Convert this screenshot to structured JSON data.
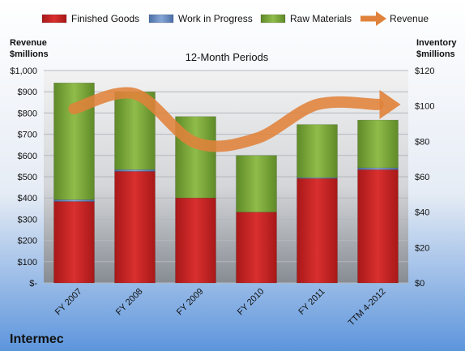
{
  "chart_data": {
    "type": "bar",
    "stacked": true,
    "title": "12-Month Periods",
    "company": "Intermec",
    "categories": [
      "FY 2007",
      "FY 2008",
      "FY 2009",
      "FY 2010",
      "FY 2011",
      "TTM 4-2012"
    ],
    "left_axis": {
      "label_line1": "Revenue",
      "label_line2": "$millions",
      "range": [
        0,
        1000
      ],
      "ticks": [
        "$-",
        "$100",
        "$200",
        "$300",
        "$400",
        "$500",
        "$600",
        "$700",
        "$800",
        "$900",
        "$1,000"
      ]
    },
    "right_axis": {
      "label_line1": "Inventory",
      "label_line2": "$millions",
      "range": [
        0,
        120
      ],
      "ticks": [
        "$0",
        "$20",
        "$40",
        "$60",
        "$80",
        "$100",
        "$120"
      ]
    },
    "series": [
      {
        "name": "Finished Goods",
        "type": "bar",
        "axis": "right",
        "color": "#cc2222",
        "values": [
          46,
          63,
          48,
          40,
          59,
          64
        ]
      },
      {
        "name": "Work in Progress",
        "type": "bar",
        "axis": "right",
        "color": "#6f8fc0",
        "values": [
          1,
          1,
          0,
          0,
          0.5,
          1
        ]
      },
      {
        "name": "Raw Materials",
        "type": "bar",
        "axis": "right",
        "color": "#7ea83b",
        "values": [
          66,
          44,
          46,
          32,
          30,
          27
        ]
      },
      {
        "name": "Revenue",
        "type": "line",
        "axis": "left",
        "color": "#e0823a",
        "values": [
          820,
          890,
          660,
          680,
          840,
          840
        ]
      }
    ],
    "legend_position": "top",
    "grid": true
  }
}
